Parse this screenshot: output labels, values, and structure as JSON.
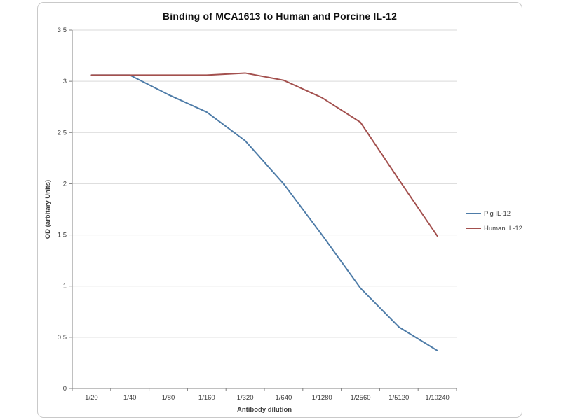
{
  "chart_data": {
    "type": "line",
    "title": "Binding of MCA1613 to Human and Porcine IL-12",
    "xlabel": "Antibody dilution",
    "ylabel": "OD (arbitary Units)",
    "categories": [
      "1/20",
      "1/40",
      "1/80",
      "1/160",
      "1/320",
      "1/640",
      "1/1280",
      "1/2560",
      "1/5120",
      "1/10240"
    ],
    "series": [
      {
        "name": "Pig IL-12",
        "color": "#4E7CA8",
        "values": [
          3.06,
          3.06,
          2.87,
          2.7,
          2.42,
          2.0,
          1.5,
          0.98,
          0.6,
          0.37
        ]
      },
      {
        "name": "Human IL-12",
        "color": "#A3504E",
        "values": [
          3.06,
          3.06,
          3.06,
          3.06,
          3.08,
          3.01,
          2.84,
          2.6,
          2.04,
          1.49
        ]
      }
    ],
    "ylim": [
      0,
      3.5
    ],
    "ytick_step": 0.5,
    "grid": true,
    "legend_position": "right"
  },
  "colors": {
    "gridline": "#d9d9d9",
    "axis": "#808080",
    "tick_text": "#3f3f3f",
    "frame_border": "#c9c9c9",
    "background": "#ffffff"
  }
}
